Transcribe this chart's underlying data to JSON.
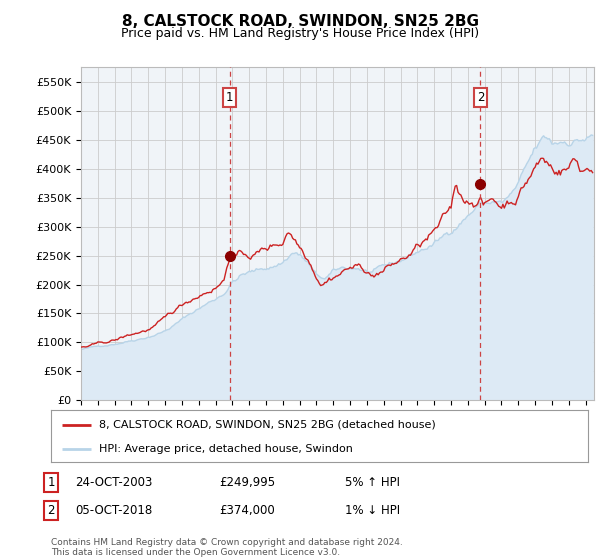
{
  "title": "8, CALSTOCK ROAD, SWINDON, SN25 2BG",
  "subtitle": "Price paid vs. HM Land Registry's House Price Index (HPI)",
  "ylim": [
    0,
    575000
  ],
  "yticks": [
    0,
    50000,
    100000,
    150000,
    200000,
    250000,
    300000,
    350000,
    400000,
    450000,
    500000,
    550000
  ],
  "ytick_labels": [
    "£0",
    "£50K",
    "£100K",
    "£150K",
    "£200K",
    "£250K",
    "£300K",
    "£350K",
    "£400K",
    "£450K",
    "£500K",
    "£550K"
  ],
  "hpi_color": "#b8d4e8",
  "hpi_fill_color": "#ddeaf5",
  "price_color": "#cc2222",
  "vline_color": "#cc4444",
  "purchase1_x": 2003.83,
  "purchase1_price": 249995,
  "purchase2_x": 2018.75,
  "purchase2_price": 374000,
  "legend_line1": "8, CALSTOCK ROAD, SWINDON, SN25 2BG (detached house)",
  "legend_line2": "HPI: Average price, detached house, Swindon",
  "table_rows": [
    {
      "num": "1",
      "date": "24-OCT-2003",
      "price": "£249,995",
      "hpi": "5% ↑ HPI"
    },
    {
      "num": "2",
      "date": "05-OCT-2018",
      "price": "£374,000",
      "hpi": "1% ↓ HPI"
    }
  ],
  "footnote": "Contains HM Land Registry data © Crown copyright and database right 2024.\nThis data is licensed under the Open Government Licence v3.0.",
  "bg_color": "#ffffff",
  "grid_color": "#cccccc",
  "xlim_start": 1995.0,
  "xlim_end": 2025.5
}
